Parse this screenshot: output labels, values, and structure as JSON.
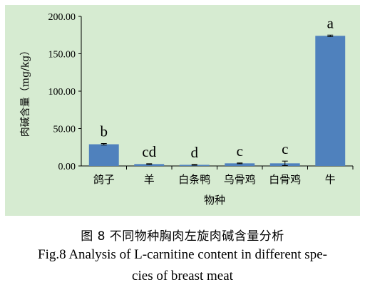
{
  "chart_data": {
    "type": "bar",
    "categories": [
      "鸽子",
      "羊",
      "白条鸭",
      "乌骨鸡",
      "白骨鸡",
      "牛"
    ],
    "values": [
      29.0,
      2.5,
      1.5,
      3.5,
      3.5,
      174.0
    ],
    "errors": [
      1.0,
      0.5,
      0.5,
      0.5,
      3.0,
      1.0
    ],
    "significance": [
      "b",
      "cd",
      "d",
      "c",
      "c",
      "a"
    ],
    "xlabel": "物种",
    "ylabel": "肉碱含量（mg/kg）",
    "yticks": [
      "0.00",
      "50.00",
      "100.00",
      "150.00",
      "200.00"
    ],
    "ylim": [
      0,
      200
    ],
    "bar_color": "#4f81bd",
    "background_color": "#d6ebd1",
    "grid": false,
    "legend": "none"
  },
  "caption": {
    "chinese": "图 8  不同物种胸肉左旋肉碱含量分析",
    "english_line1": "Fig.8 Analysis of L-carnitine content in different spe-",
    "english_line2": "cies of breast meat"
  }
}
